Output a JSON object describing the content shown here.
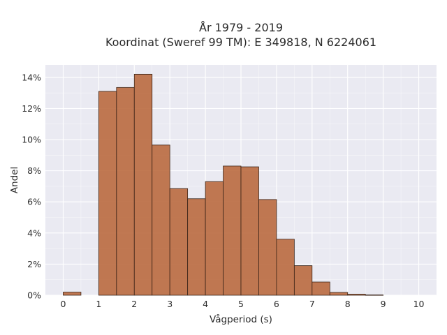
{
  "chart_data": {
    "type": "bar",
    "title_line1": "År 1979 - 2019",
    "title_line2": "Koordinat (Sweref 99 TM): E 349818, N 6224061",
    "xlabel": "Vågperiod (s)",
    "ylabel": "Andel",
    "xlim": [
      -0.5,
      10.5
    ],
    "ylim": [
      0,
      14.8
    ],
    "xticks": [
      "0",
      "1",
      "2",
      "3",
      "4",
      "5",
      "6",
      "7",
      "8",
      "9",
      "10"
    ],
    "yticks": [
      "0%",
      "2%",
      "4%",
      "6%",
      "8%",
      "10%",
      "12%",
      "14%"
    ],
    "bin_width": 0.5,
    "bins": [
      {
        "x": 0.0,
        "value": 0.2
      },
      {
        "x": 0.5,
        "value": 0.0
      },
      {
        "x": 1.0,
        "value": 13.1
      },
      {
        "x": 1.5,
        "value": 13.35
      },
      {
        "x": 2.0,
        "value": 14.2
      },
      {
        "x": 2.5,
        "value": 9.65
      },
      {
        "x": 3.0,
        "value": 6.85
      },
      {
        "x": 3.5,
        "value": 6.2
      },
      {
        "x": 4.0,
        "value": 7.3
      },
      {
        "x": 4.5,
        "value": 8.3
      },
      {
        "x": 5.0,
        "value": 8.25
      },
      {
        "x": 5.5,
        "value": 6.15
      },
      {
        "x": 6.0,
        "value": 3.6
      },
      {
        "x": 6.5,
        "value": 1.9
      },
      {
        "x": 7.0,
        "value": 0.85
      },
      {
        "x": 7.5,
        "value": 0.18
      },
      {
        "x": 8.0,
        "value": 0.07
      },
      {
        "x": 8.5,
        "value": 0.02
      }
    ],
    "grid": true,
    "colors": {
      "bar": "#b8673a",
      "plot_bg": "#eaeaf2"
    }
  }
}
